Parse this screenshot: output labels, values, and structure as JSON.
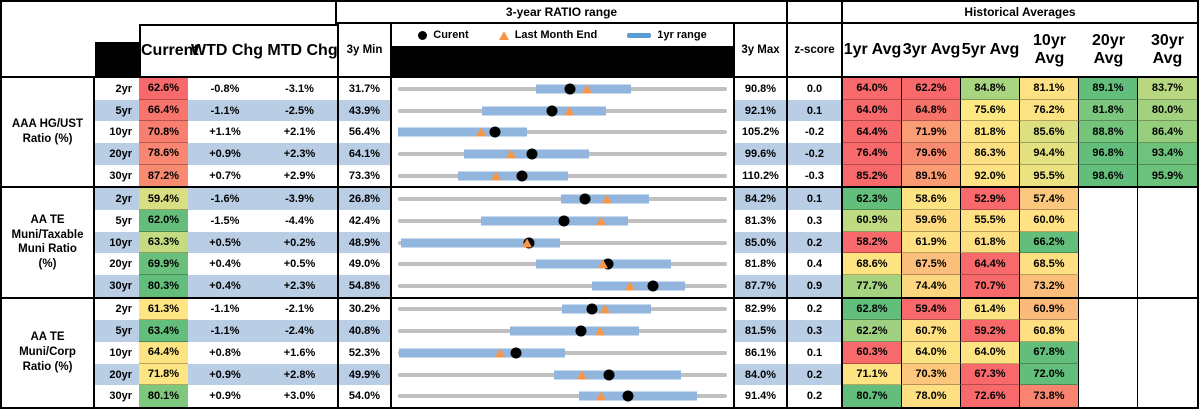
{
  "header": {
    "range_title": "3-year RATIO range",
    "hist_title": "Historical Averages",
    "col_current": "Current",
    "col_wtd": "WTD Chg",
    "col_mtd": "MTD Chg",
    "col_3ymin": "3y Min",
    "col_3ymax": "3y Max",
    "col_zscore": "z-score",
    "avg_cols": [
      "1yr Avg",
      "3yr Avg",
      "5yr Avg",
      "10yr Avg",
      "20yr Avg",
      "30yr Avg"
    ],
    "legend": {
      "current": "Curent",
      "last_month": "Last Month End",
      "range": "1yr range"
    }
  },
  "colors": {
    "stripe_blue": "#B9CDE4",
    "bar_blue": "#92B5DE",
    "legend_bar_blue": "#5B9BD5",
    "track_gray": "#C0C0C0",
    "triangle_orange": "#F79646",
    "dot_black": "#000000",
    "scale_red": "#F8696B",
    "scale_yellow": "#FFEB84",
    "scale_green": "#63BE7B"
  },
  "chart_data": {
    "type": "table",
    "note": "bullet-range rows: gray track spans 3y Min to 3y Max; blue bar = 1yr range; black dot = current; orange triangle = last month end",
    "groups": [
      {
        "label_lines": [
          "AAA HG/UST",
          "Ratio (%)"
        ],
        "rows": [
          {
            "term": "2yr",
            "cur": "62.6%",
            "cur_bg": "#F8696B",
            "wtd": "-0.8%",
            "mtd": "-3.1%",
            "min": "31.7%",
            "max": "90.8%",
            "z": "0.0",
            "min_v": 31.7,
            "max_v": 90.8,
            "bar": [
              56.4,
              73.5
            ],
            "dot": 62.6,
            "tri": 65.7,
            "avgs": [
              [
                "64.0%",
                "#F8696B"
              ],
              [
                "62.2%",
                "#F8696B"
              ],
              [
                "84.8%",
                "#A9D480"
              ],
              [
                "81.1%",
                "#FEE182"
              ],
              [
                "89.1%",
                "#63BE7B"
              ],
              [
                "83.7%",
                "#B7D780"
              ]
            ]
          },
          {
            "term": "5yr",
            "cur": "66.4%",
            "cur_bg": "#F8756D",
            "wtd": "-1.1%",
            "mtd": "-2.5%",
            "min": "43.9%",
            "max": "92.1%",
            "z": "0.1",
            "min_v": 43.9,
            "max_v": 92.1,
            "bar": [
              56.2,
              74.4
            ],
            "dot": 66.4,
            "tri": 68.9,
            "avgs": [
              [
                "64.0%",
                "#F8696B"
              ],
              [
                "64.8%",
                "#F8726C"
              ],
              [
                "75.6%",
                "#FEE883"
              ],
              [
                "76.2%",
                "#FBE283"
              ],
              [
                "81.8%",
                "#7CC67D"
              ],
              [
                "80.0%",
                "#A3D27F"
              ]
            ]
          },
          {
            "term": "10yr",
            "cur": "70.8%",
            "cur_bg": "#F87F6F",
            "wtd": "+1.1%",
            "mtd": "+2.1%",
            "min": "56.4%",
            "max": "105.2%",
            "z": "-0.2",
            "min_v": 56.4,
            "max_v": 105.2,
            "bar": [
              56.4,
              75.5
            ],
            "dot": 70.8,
            "tri": 68.7,
            "avgs": [
              [
                "64.4%",
                "#F8696B"
              ],
              [
                "71.9%",
                "#FA9C74"
              ],
              [
                "81.8%",
                "#FEE583"
              ],
              [
                "85.6%",
                "#DCE081"
              ],
              [
                "88.8%",
                "#74C47C"
              ],
              [
                "86.4%",
                "#97CE7E"
              ]
            ]
          },
          {
            "term": "20yr",
            "cur": "78.6%",
            "cur_bg": "#F98670",
            "wtd": "+0.9%",
            "mtd": "+2.3%",
            "min": "64.1%",
            "max": "99.6%",
            "z": "-0.2",
            "min_v": 64.1,
            "max_v": 99.6,
            "bar": [
              71.2,
              84.7
            ],
            "dot": 78.6,
            "tri": 76.3,
            "avgs": [
              [
                "76.4%",
                "#F8696B"
              ],
              [
                "79.6%",
                "#F98B71"
              ],
              [
                "86.3%",
                "#FEDF82"
              ],
              [
                "94.4%",
                "#E3E181"
              ],
              [
                "96.8%",
                "#63BE7B"
              ],
              [
                "93.4%",
                "#6FC27C"
              ]
            ]
          },
          {
            "term": "30yr",
            "cur": "87.2%",
            "cur_bg": "#F98A72",
            "wtd": "+0.7%",
            "mtd": "+2.9%",
            "min": "73.3%",
            "max": "110.2%",
            "z": "-0.3",
            "min_v": 73.3,
            "max_v": 110.2,
            "bar": [
              80.0,
              92.4
            ],
            "dot": 87.2,
            "tri": 84.3,
            "avgs": [
              [
                "85.2%",
                "#F8696B"
              ],
              [
                "89.1%",
                "#FA9B74"
              ],
              [
                "92.0%",
                "#FEE283"
              ],
              [
                "95.5%",
                "#EBE382"
              ],
              [
                "98.6%",
                "#63BE7B"
              ],
              [
                "95.9%",
                "#6CC17B"
              ]
            ]
          }
        ]
      },
      {
        "label_lines": [
          "AA TE",
          "Muni/Taxable",
          "Muni Ratio",
          "(%)"
        ],
        "rows": [
          {
            "term": "2yr",
            "cur": "59.4%",
            "cur_bg": "#D9DE82",
            "wtd": "-1.6%",
            "mtd": "-3.9%",
            "min": "26.8%",
            "max": "84.2%",
            "z": "0.1",
            "min_v": 26.8,
            "max_v": 84.2,
            "bar": [
              55.3,
              70.6
            ],
            "dot": 59.4,
            "tri": 63.3,
            "avgs": [
              [
                "62.3%",
                "#63BE7B"
              ],
              [
                "58.6%",
                "#FEE383"
              ],
              [
                "52.9%",
                "#F8696B"
              ],
              [
                "57.4%",
                "#FCC87D"
              ],
              [
                "",
                ""
              ],
              [
                "",
                ""
              ]
            ]
          },
          {
            "term": "5yr",
            "cur": "62.0%",
            "cur_bg": "#63BE7B",
            "wtd": "-1.5%",
            "mtd": "-4.4%",
            "min": "42.4%",
            "max": "81.3%",
            "z": "0.3",
            "min_v": 42.4,
            "max_v": 81.3,
            "bar": [
              52.2,
              69.6
            ],
            "dot": 62.0,
            "tri": 66.4,
            "avgs": [
              [
                "60.9%",
                "#C0DA81"
              ],
              [
                "59.6%",
                "#FDD980"
              ],
              [
                "55.5%",
                "#FEE183"
              ],
              [
                "60.0%",
                "#FEE283"
              ],
              [
                "",
                ""
              ],
              [
                "",
                ""
              ]
            ]
          },
          {
            "term": "10yr",
            "cur": "63.3%",
            "cur_bg": "#C5DB81",
            "wtd": "+0.5%",
            "mtd": "+0.2%",
            "min": "48.9%",
            "max": "85.0%",
            "z": "0.2",
            "min_v": 48.9,
            "max_v": 85.0,
            "bar": [
              49.2,
              66.7
            ],
            "dot": 63.3,
            "tri": 63.1,
            "avgs": [
              [
                "58.2%",
                "#F8696B"
              ],
              [
                "61.9%",
                "#FEE083"
              ],
              [
                "61.8%",
                "#FEE083"
              ],
              [
                "66.2%",
                "#63BE7B"
              ],
              [
                "",
                ""
              ],
              [
                "",
                ""
              ]
            ]
          },
          {
            "term": "20yr",
            "cur": "69.9%",
            "cur_bg": "#69C07C",
            "wtd": "+0.4%",
            "mtd": "+0.5%",
            "min": "49.0%",
            "max": "81.8%",
            "z": "0.4",
            "min_v": 49.0,
            "max_v": 81.8,
            "bar": [
              62.8,
              76.2
            ],
            "dot": 69.9,
            "tri": 69.4,
            "avgs": [
              [
                "68.6%",
                "#FEE383"
              ],
              [
                "67.5%",
                "#FCBE7B"
              ],
              [
                "64.4%",
                "#F8696B"
              ],
              [
                "68.5%",
                "#FEDF82"
              ],
              [
                "",
                ""
              ],
              [
                "",
                ""
              ]
            ]
          },
          {
            "term": "30yr",
            "cur": "80.3%",
            "cur_bg": "#63BE7B",
            "wtd": "+0.4%",
            "mtd": "+2.3%",
            "min": "54.8%",
            "max": "87.7%",
            "z": "0.9",
            "min_v": 54.8,
            "max_v": 87.7,
            "bar": [
              74.2,
              83.5
            ],
            "dot": 80.3,
            "tri": 78.0,
            "avgs": [
              [
                "77.7%",
                "#A6D380"
              ],
              [
                "74.4%",
                "#FDD780"
              ],
              [
                "70.7%",
                "#F8696B"
              ],
              [
                "73.2%",
                "#FBBF7B"
              ],
              [
                "",
                ""
              ],
              [
                "",
                ""
              ]
            ]
          }
        ]
      },
      {
        "label_lines": [
          "AA TE",
          "Muni/Corp",
          "Ratio (%)"
        ],
        "rows": [
          {
            "term": "2yr",
            "cur": "61.3%",
            "cur_bg": "#FEE583",
            "wtd": "-1.1%",
            "mtd": "-2.1%",
            "min": "30.2%",
            "max": "82.9%",
            "z": "0.2",
            "min_v": 30.2,
            "max_v": 82.9,
            "bar": [
              56.4,
              70.7
            ],
            "dot": 61.3,
            "tri": 63.4,
            "avgs": [
              [
                "62.8%",
                "#63BE7B"
              ],
              [
                "59.4%",
                "#F8696B"
              ],
              [
                "61.4%",
                "#FEE383"
              ],
              [
                "60.9%",
                "#FBBA7A"
              ],
              [
                "",
                ""
              ],
              [
                "",
                ""
              ]
            ]
          },
          {
            "term": "5yr",
            "cur": "63.4%",
            "cur_bg": "#63BE7B",
            "wtd": "-1.1%",
            "mtd": "-2.4%",
            "min": "40.8%",
            "max": "81.5%",
            "z": "0.3",
            "min_v": 40.8,
            "max_v": 81.5,
            "bar": [
              54.7,
              70.6
            ],
            "dot": 63.4,
            "tri": 65.8,
            "avgs": [
              [
                "62.2%",
                "#9ED07F"
              ],
              [
                "60.7%",
                "#FEE083"
              ],
              [
                "59.2%",
                "#F8696B"
              ],
              [
                "60.8%",
                "#FEE083"
              ],
              [
                "",
                ""
              ],
              [
                "",
                ""
              ]
            ]
          },
          {
            "term": "10yr",
            "cur": "64.4%",
            "cur_bg": "#FDE483",
            "wtd": "+0.8%",
            "mtd": "+1.6%",
            "min": "52.3%",
            "max": "86.1%",
            "z": "0.1",
            "min_v": 52.3,
            "max_v": 86.1,
            "bar": [
              52.4,
              69.5
            ],
            "dot": 64.4,
            "tri": 62.8,
            "avgs": [
              [
                "60.3%",
                "#F8696B"
              ],
              [
                "64.0%",
                "#FEE383"
              ],
              [
                "64.0%",
                "#FEE383"
              ],
              [
                "67.8%",
                "#63BE7B"
              ],
              [
                "",
                ""
              ],
              [
                "",
                ""
              ]
            ]
          },
          {
            "term": "20yr",
            "cur": "71.8%",
            "cur_bg": "#FEE583",
            "wtd": "+0.9%",
            "mtd": "+2.8%",
            "min": "49.9%",
            "max": "84.0%",
            "z": "0.2",
            "min_v": 49.9,
            "max_v": 84.0,
            "bar": [
              66.1,
              79.2
            ],
            "dot": 71.8,
            "tri": 69.0,
            "avgs": [
              [
                "71.1%",
                "#FEE383"
              ],
              [
                "70.3%",
                "#FCC77D"
              ],
              [
                "67.3%",
                "#F8696B"
              ],
              [
                "72.0%",
                "#63BE7B"
              ],
              [
                "",
                ""
              ],
              [
                "",
                ""
              ]
            ]
          },
          {
            "term": "30yr",
            "cur": "80.1%",
            "cur_bg": "#7EC87E",
            "wtd": "+0.9%",
            "mtd": "+3.0%",
            "min": "54.0%",
            "max": "91.4%",
            "z": "0.2",
            "min_v": 54.0,
            "max_v": 91.4,
            "bar": [
              74.6,
              88.0
            ],
            "dot": 80.1,
            "tri": 77.1,
            "avgs": [
              [
                "80.7%",
                "#63BE7B"
              ],
              [
                "78.0%",
                "#FEE083"
              ],
              [
                "72.6%",
                "#F8696B"
              ],
              [
                "73.8%",
                "#F98570"
              ],
              [
                "",
                ""
              ],
              [
                "",
                ""
              ]
            ]
          }
        ]
      }
    ]
  }
}
